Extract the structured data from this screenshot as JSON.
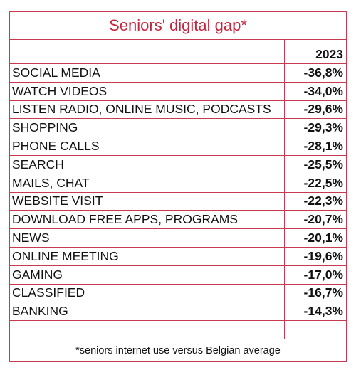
{
  "chart_data": {
    "type": "table",
    "title": "Seniors' digital gap*",
    "columns": [
      "",
      "2023"
    ],
    "rows": [
      {
        "label": "SOCIAL MEDIA",
        "value": "-36,8%"
      },
      {
        "label": "WATCH VIDEOS",
        "value": "-34,0%"
      },
      {
        "label": "LISTEN RADIO, ONLINE MUSIC, PODCASTS",
        "value": "-29,6%"
      },
      {
        "label": "SHOPPING",
        "value": "-29,3%"
      },
      {
        "label": "PHONE CALLS",
        "value": "-28,1%"
      },
      {
        "label": "SEARCH",
        "value": "-25,5%"
      },
      {
        "label": "MAILS, CHAT",
        "value": "-22,5%"
      },
      {
        "label": "WEBSITE VISIT",
        "value": "-22,3%"
      },
      {
        "label": "DOWNLOAD FREE APPS, PROGRAMS",
        "value": "-20,7%"
      },
      {
        "label": "NEWS",
        "value": "-20,1%"
      },
      {
        "label": "ONLINE MEETING",
        "value": "-19,6%"
      },
      {
        "label": "GAMING",
        "value": "-17,0%"
      },
      {
        "label": "CLASSIFIED",
        "value": "-16,7%"
      },
      {
        "label": "BANKING",
        "value": "-14,3%"
      }
    ],
    "footnote": "*seniors internet use versus Belgian average"
  },
  "colors": {
    "title": "#c4283f",
    "border": "#c9394f",
    "text": "#111111"
  }
}
